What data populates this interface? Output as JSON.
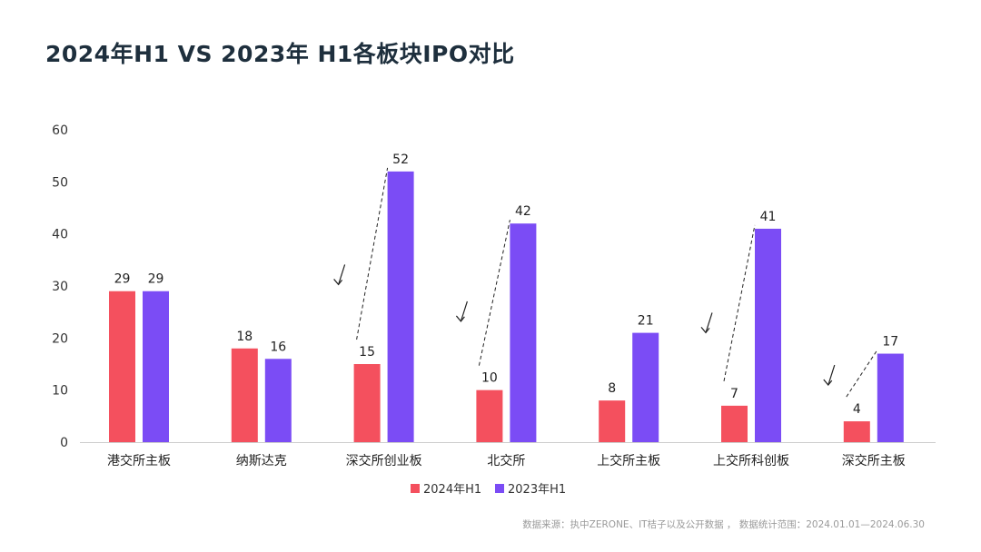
{
  "chart_data": {
    "type": "bar",
    "title": "2024年H1  VS  2023年  H1各板块IPO对比",
    "categories": [
      "港交所主板",
      "纳斯达克",
      "深交所创业板",
      "北交所",
      "上交所主板",
      "上交所科创板",
      "深交所主板"
    ],
    "series": [
      {
        "name": "2024年H1",
        "color": "#f4505e",
        "values": [
          29,
          18,
          15,
          10,
          8,
          7,
          4
        ]
      },
      {
        "name": "2023年H1",
        "color": "#7b4cf5",
        "values": [
          29,
          16,
          52,
          42,
          21,
          41,
          17
        ]
      }
    ],
    "ylim": [
      0,
      60
    ],
    "yticks": [
      0,
      10,
      20,
      30,
      40,
      50,
      60
    ],
    "grid": false,
    "legend": "bottom",
    "decline_markers": [
      "深交所创业板",
      "北交所",
      "上交所科创板",
      "深交所主板"
    ],
    "xlabel": "",
    "ylabel": ""
  },
  "source": "数据来源：执中ZERONE、IT桔子以及公开数据 ， 数据统计范围：2024.01.01—2024.06.30"
}
